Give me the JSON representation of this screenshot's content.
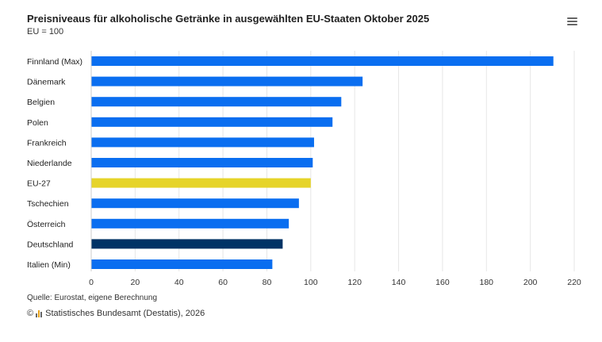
{
  "header": {
    "title": "Preisniveaus für alkoholische Getränke in ausgewählten EU-Staaten Oktober 2025",
    "subtitle": "EU = 100",
    "menu_icon": "hamburger-menu-icon"
  },
  "footer": {
    "source": "Quelle: Eurostat, eigene Berechnung",
    "copyright_symbol": "©",
    "credit": "Statistisches Bundesamt (Destatis), 2026",
    "logo_icon": "destatis-logo-icon"
  },
  "colors": {
    "default_bar": "#0a6ef0",
    "eu_bar": "#e6d42a",
    "germany_bar": "#003366",
    "grid": "#e6e6e6",
    "axis_text": "#333333"
  },
  "chart_data": {
    "type": "bar",
    "orientation": "horizontal",
    "title": "Preisniveaus für alkoholische Getränke in ausgewählten EU-Staaten Oktober 2025",
    "subtitle": "EU = 100",
    "categories": [
      "Finnland (Max)",
      "Dänemark",
      "Belgien",
      "Polen",
      "Frankreich",
      "Niederlande",
      "EU-27",
      "Tschechien",
      "Österreich",
      "Deutschland",
      "Italien (Min)"
    ],
    "values": [
      210.5,
      123.6,
      113.9,
      109.9,
      101.5,
      100.9,
      100.0,
      94.6,
      90.0,
      87.2,
      82.5
    ],
    "bar_colors": [
      "#0a6ef0",
      "#0a6ef0",
      "#0a6ef0",
      "#0a6ef0",
      "#0a6ef0",
      "#0a6ef0",
      "#e6d42a",
      "#0a6ef0",
      "#0a6ef0",
      "#003366",
      "#0a6ef0"
    ],
    "xlim": [
      0,
      220
    ],
    "xticks": [
      0,
      20,
      40,
      60,
      80,
      100,
      120,
      140,
      160,
      180,
      200,
      220
    ],
    "grid": true,
    "legend": "none"
  }
}
